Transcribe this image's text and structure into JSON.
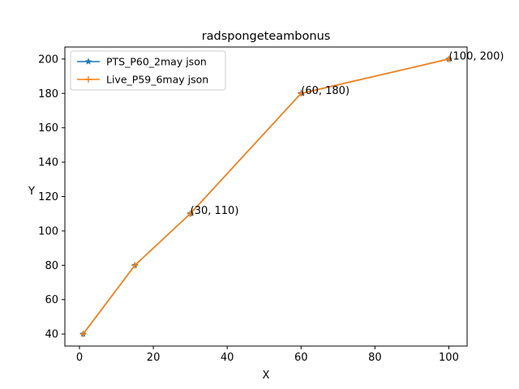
{
  "chart_data": {
    "type": "line",
    "title": "radspongeteambonus",
    "xlabel": "X",
    "ylabel": "Y",
    "xlim": [
      -3.95,
      104.95
    ],
    "ylim": [
      33,
      207
    ],
    "xticks": [
      0,
      20,
      40,
      60,
      80,
      100
    ],
    "yticks": [
      40,
      60,
      80,
      100,
      120,
      140,
      160,
      180,
      200
    ],
    "grid": false,
    "legend_position": "upper left",
    "series": [
      {
        "name": "PTS_P60_2may json",
        "color": "#1f77b4",
        "marker": "star",
        "x": [
          1,
          15,
          30,
          60,
          100
        ],
        "y": [
          40,
          80,
          110,
          180,
          200
        ]
      },
      {
        "name": "Live_P59_6may json",
        "color": "#ff7f0e",
        "marker": "plus",
        "x": [
          1,
          15,
          30,
          60,
          100
        ],
        "y": [
          40,
          80,
          110,
          180,
          200
        ]
      }
    ],
    "annotations": [
      {
        "text": "(30, 110)",
        "x": 30,
        "y": 110
      },
      {
        "text": "(60, 180)",
        "x": 60,
        "y": 180
      },
      {
        "text": "(100, 200)",
        "x": 100,
        "y": 200
      }
    ]
  }
}
